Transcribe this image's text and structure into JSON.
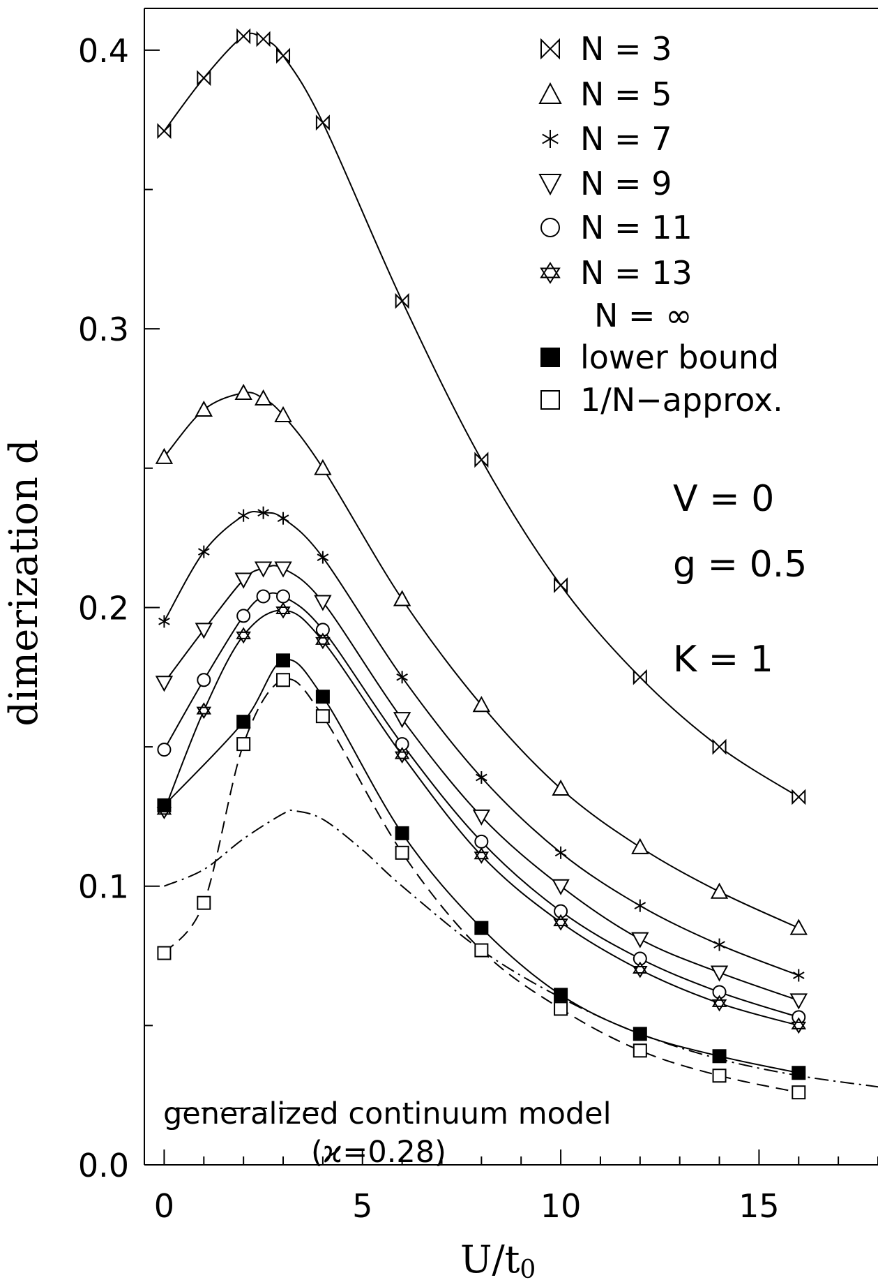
{
  "chart_data": {
    "type": "line",
    "xlabel": "U/t",
    "xlabel_sub": "0",
    "ylabel": "dimerization d",
    "xlim": [
      -0.5,
      18
    ],
    "ylim": [
      0.0,
      0.415
    ],
    "x_ticks": [
      0,
      5,
      10,
      15
    ],
    "x_tick_labels": [
      "0",
      "5",
      "10",
      "15"
    ],
    "y_ticks": [
      0.0,
      0.1,
      0.2,
      0.3,
      0.4
    ],
    "y_tick_labels": [
      "0.0",
      "0.1",
      "0.2",
      "0.3",
      "0.4"
    ],
    "legend_position": "top-right",
    "params": [
      "V = 0",
      "g = 0.5",
      "K = 1"
    ],
    "series": [
      {
        "name": "N =   3",
        "marker": "bowtie",
        "line": "solid",
        "x": [
          0,
          1,
          2,
          2.5,
          3,
          4,
          6,
          8,
          10,
          12,
          14,
          16
        ],
        "y": [
          0.371,
          0.39,
          0.405,
          0.404,
          0.398,
          0.374,
          0.31,
          0.253,
          0.208,
          0.175,
          0.15,
          0.132
        ]
      },
      {
        "name": "N =   5",
        "marker": "triangle-up",
        "line": "solid",
        "x": [
          0,
          1,
          2,
          2.5,
          3,
          4,
          6,
          8,
          10,
          12,
          14,
          16
        ],
        "y": [
          0.254,
          0.271,
          0.277,
          0.275,
          0.269,
          0.25,
          0.203,
          0.165,
          0.135,
          0.114,
          0.098,
          0.085
        ]
      },
      {
        "name": "N =   7",
        "marker": "asterisk",
        "line": "solid",
        "x": [
          0,
          1,
          2,
          2.5,
          3,
          4,
          6,
          8,
          10,
          12,
          14,
          16
        ],
        "y": [
          0.195,
          0.22,
          0.233,
          0.234,
          0.232,
          0.218,
          0.175,
          0.139,
          0.112,
          0.093,
          0.079,
          0.068
        ]
      },
      {
        "name": "N =   9",
        "marker": "triangle-down",
        "line": "solid",
        "x": [
          0,
          1,
          2,
          2.5,
          3,
          4,
          6,
          8,
          10,
          12,
          14,
          16
        ],
        "y": [
          0.173,
          0.192,
          0.21,
          0.214,
          0.214,
          0.202,
          0.16,
          0.125,
          0.1,
          0.081,
          0.069,
          0.059
        ]
      },
      {
        "name": "N =   11",
        "marker": "circle",
        "line": "solid",
        "x": [
          0,
          1,
          2,
          2.5,
          3,
          4,
          6,
          8,
          10,
          12,
          14,
          16
        ],
        "y": [
          0.149,
          0.174,
          0.197,
          0.204,
          0.204,
          0.192,
          0.151,
          0.116,
          0.091,
          0.074,
          0.062,
          0.053
        ]
      },
      {
        "name": "N =   13",
        "marker": "star-of-david",
        "line": "solid",
        "x": [
          0,
          1,
          2,
          3,
          4,
          6,
          8,
          10,
          12,
          14,
          16
        ],
        "y": [
          0.127,
          0.163,
          0.19,
          0.199,
          0.188,
          0.147,
          0.111,
          0.087,
          0.07,
          0.058,
          0.05
        ]
      },
      {
        "name": "lower bound",
        "marker": "square-filled",
        "line": "solid",
        "x": [
          0,
          2,
          3,
          4,
          6,
          8,
          10,
          12,
          14,
          16
        ],
        "y": [
          0.129,
          0.159,
          0.181,
          0.168,
          0.119,
          0.085,
          0.061,
          0.047,
          0.039,
          0.033
        ]
      },
      {
        "name": "1/N−approx.",
        "marker": "square-open",
        "line": "dashed",
        "x": [
          0,
          1,
          2,
          3,
          4,
          6,
          8,
          10,
          12,
          14,
          16
        ],
        "y": [
          0.076,
          0.094,
          0.151,
          0.174,
          0.161,
          0.112,
          0.077,
          0.056,
          0.041,
          0.032,
          0.026
        ]
      },
      {
        "name": "generalized continuum model",
        "marker": "none",
        "line": "dash-dot",
        "x": [
          0,
          1,
          2,
          3,
          3.3,
          4,
          5,
          6,
          8,
          10,
          12,
          14,
          16,
          18
        ],
        "y": [
          0.1,
          0.106,
          0.117,
          0.126,
          0.127,
          0.124,
          0.113,
          0.1,
          0.077,
          0.06,
          0.047,
          0.038,
          0.032,
          0.028
        ]
      }
    ],
    "legend_entries": [
      {
        "symbol": "bowtie",
        "text": "N =   3"
      },
      {
        "symbol": "triangle-up",
        "text": "N =   5"
      },
      {
        "symbol": "asterisk",
        "text": "N =   7"
      },
      {
        "symbol": "triangle-down",
        "text": "N =   9"
      },
      {
        "symbol": "circle",
        "text": "N =   11"
      },
      {
        "symbol": "star-of-david",
        "text": "N =   13"
      },
      {
        "symbol": "none",
        "text": "N = ∞"
      },
      {
        "symbol": "square-filled",
        "text": "  lower bound"
      },
      {
        "symbol": "square-open",
        "text": "1/N−approx."
      }
    ],
    "annotation": {
      "line1": "generalized continuum model",
      "line2": "(ϰ=0.28)"
    }
  }
}
